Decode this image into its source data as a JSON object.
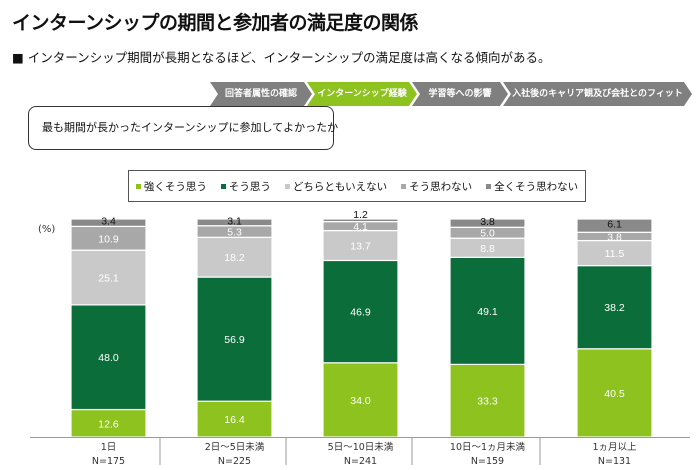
{
  "header": {
    "title": "インターンシップの期間と参加者の満足度の関係",
    "subtitle": "■ インターンシップ期間が長期となるほど、インターンシップの満足度は高くなる傾向がある。"
  },
  "steps": [
    {
      "label": "回答者属性の確認",
      "active": false
    },
    {
      "label": "インターンシップ経験",
      "active": true
    },
    {
      "label": "学習等への影響",
      "active": false
    },
    {
      "label": "入社後のキャリア観及び会社とのフィット",
      "active": false
    }
  ],
  "question": "最も期間が長かったインターンシップに参加してよかったか",
  "chart_data": {
    "type": "stacked-bar",
    "ylabel": "(%)",
    "ylim": [
      0,
      100
    ],
    "categories": [
      "1日",
      "2日～5日未満",
      "5日～10日未満",
      "10日～1ヵ月未満",
      "1ヵ月以上"
    ],
    "n_labels": [
      "N=175",
      "N=225",
      "N=241",
      "N=159",
      "N=131"
    ],
    "legend_position": "top",
    "series": [
      {
        "name": "強くそう思う",
        "color": "#8dc21f",
        "label_color": "#ffffff",
        "values": [
          12.6,
          16.4,
          34.0,
          33.3,
          40.5
        ]
      },
      {
        "name": "そう思う",
        "color": "#0b6e3a",
        "label_color": "#ffffff",
        "values": [
          48.0,
          56.9,
          46.9,
          49.1,
          38.2
        ]
      },
      {
        "name": "どちらともいえない",
        "color": "#c9c9c9",
        "label_color": "#ffffff",
        "values": [
          25.1,
          18.2,
          13.7,
          8.8,
          11.5
        ]
      },
      {
        "name": "そう思わない",
        "color": "#a8a8a8",
        "label_color": "#ffffff",
        "values": [
          10.9,
          5.3,
          4.1,
          5.0,
          3.8
        ]
      },
      {
        "name": "全くそう思わない",
        "color": "#8a8a8a",
        "label_color": "#111111",
        "values": [
          3.4,
          3.1,
          1.2,
          3.8,
          6.1
        ]
      }
    ]
  }
}
